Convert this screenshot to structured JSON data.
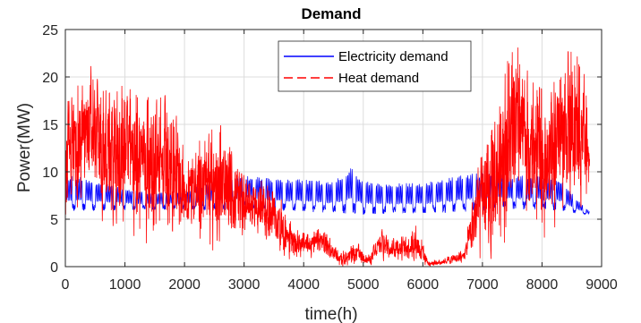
{
  "chart_data": {
    "type": "line",
    "title": "Demand",
    "xlabel": "time(h)",
    "ylabel": "Power(MW)",
    "xlim": [
      0,
      9000
    ],
    "ylim": [
      0,
      25
    ],
    "xticks": [
      0,
      1000,
      2000,
      3000,
      4000,
      5000,
      6000,
      7000,
      8000,
      9000
    ],
    "yticks": [
      0,
      5,
      10,
      15,
      20,
      25
    ],
    "grid": true,
    "legend_position": "top-right",
    "series": [
      {
        "name": "Electricity demand",
        "color": "#0000ff",
        "style": "solid",
        "profile": [
          [
            0,
            5.8,
            9.5
          ],
          [
            200,
            5.8,
            9.6
          ],
          [
            500,
            5.9,
            9.0
          ],
          [
            800,
            5.9,
            8.6
          ],
          [
            1200,
            6.0,
            8.0
          ],
          [
            1500,
            6.0,
            7.8
          ],
          [
            2000,
            6.0,
            8.0
          ],
          [
            2500,
            6.0,
            9.2
          ],
          [
            2800,
            6.0,
            9.6
          ],
          [
            3000,
            6.2,
            9.6
          ],
          [
            3500,
            5.9,
            9.3
          ],
          [
            4000,
            5.8,
            9.2
          ],
          [
            4500,
            5.6,
            9.0
          ],
          [
            4800,
            5.6,
            10.5
          ],
          [
            5000,
            5.5,
            9.0
          ],
          [
            5500,
            5.6,
            8.8
          ],
          [
            6000,
            5.6,
            8.8
          ],
          [
            6500,
            5.7,
            9.5
          ],
          [
            6800,
            5.8,
            9.8
          ],
          [
            7200,
            6.0,
            10.0
          ],
          [
            7600,
            6.0,
            9.6
          ],
          [
            8000,
            6.0,
            9.6
          ],
          [
            8300,
            5.9,
            9.2
          ],
          [
            8600,
            5.6,
            7.0
          ],
          [
            8800,
            5.4,
            5.8
          ]
        ]
      },
      {
        "name": "Heat demand",
        "color": "#ff0000",
        "style": "dashed",
        "profile": [
          [
            0,
            4.0,
            17.0
          ],
          [
            200,
            5.0,
            19.0
          ],
          [
            400,
            6.0,
            21.5
          ],
          [
            600,
            5.0,
            19.0
          ],
          [
            800,
            3.0,
            18.0
          ],
          [
            1000,
            4.0,
            19.5
          ],
          [
            1200,
            3.0,
            18.5
          ],
          [
            1500,
            2.0,
            17.5
          ],
          [
            1800,
            2.0,
            18.5
          ],
          [
            2000,
            2.5,
            12.0
          ],
          [
            2300,
            2.0,
            14.0
          ],
          [
            2600,
            1.5,
            15.0
          ],
          [
            2900,
            1.0,
            11.0
          ],
          [
            3000,
            3.0,
            10.5
          ],
          [
            3300,
            2.5,
            9.0
          ],
          [
            3600,
            1.0,
            7.5
          ],
          [
            3800,
            0.5,
            4.5
          ],
          [
            4000,
            0.8,
            3.5
          ],
          [
            4300,
            1.0,
            4.0
          ],
          [
            4450,
            0.5,
            3.0
          ],
          [
            4600,
            0.0,
            1.5
          ],
          [
            4900,
            0.0,
            2.5
          ],
          [
            5100,
            0.1,
            1.2
          ],
          [
            5300,
            0.5,
            4.0
          ],
          [
            5600,
            0.5,
            3.0
          ],
          [
            5900,
            0.2,
            4.5
          ],
          [
            6100,
            0.0,
            0.5
          ],
          [
            6400,
            0.1,
            1.0
          ],
          [
            6700,
            0.2,
            2.0
          ],
          [
            6900,
            0.0,
            10.5
          ],
          [
            7200,
            1.0,
            15.0
          ],
          [
            7500,
            3.0,
            24.5
          ],
          [
            7800,
            3.0,
            20.0
          ],
          [
            8100,
            3.0,
            18.0
          ],
          [
            8300,
            5.0,
            22.0
          ],
          [
            8500,
            4.0,
            23.0
          ],
          [
            8700,
            5.0,
            22.5
          ],
          [
            8800,
            7.0,
            12.0
          ]
        ]
      }
    ]
  }
}
